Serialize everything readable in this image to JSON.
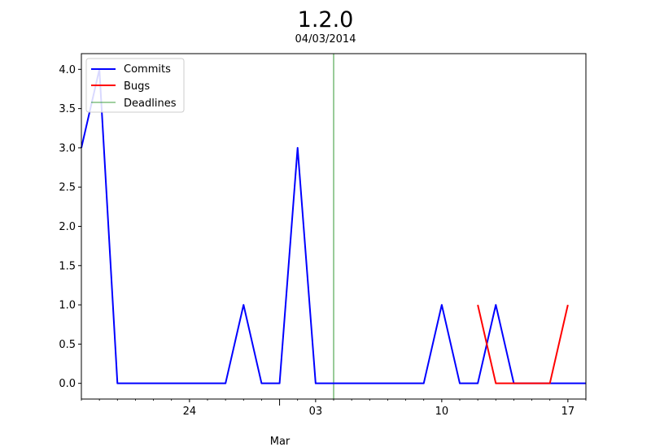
{
  "chart_data": {
    "type": "line",
    "title": "1.2.0",
    "subtitle": "04/03/2014",
    "xlabel": "",
    "ylabel": "",
    "x_axis": {
      "type": "date",
      "range": [
        "2014-02-18",
        "2014-03-18"
      ],
      "month_label": "Mar",
      "major_ticks": [
        {
          "date": "2014-02-24",
          "label": "24"
        },
        {
          "date": "2014-03-03",
          "label": "03"
        },
        {
          "date": "2014-03-10",
          "label": "10"
        },
        {
          "date": "2014-03-17",
          "label": "17"
        }
      ],
      "minor_tick_dates": [
        "2014-02-18",
        "2014-02-19",
        "2014-02-20",
        "2014-02-21",
        "2014-02-22",
        "2014-02-23",
        "2014-02-25",
        "2014-02-26",
        "2014-02-27",
        "2014-02-28",
        "2014-03-01",
        "2014-03-02",
        "2014-03-04",
        "2014-03-05",
        "2014-03-06",
        "2014-03-07",
        "2014-03-08",
        "2014-03-09",
        "2014-03-11",
        "2014-03-12",
        "2014-03-13",
        "2014-03-14",
        "2014-03-15",
        "2014-03-16",
        "2014-03-18"
      ]
    },
    "ylim": [
      -0.2,
      4.2
    ],
    "yticks": [
      "0.0",
      "0.5",
      "1.0",
      "1.5",
      "2.0",
      "2.5",
      "3.0",
      "3.5",
      "4.0"
    ],
    "grid": false,
    "legend_position": "top-left",
    "series": [
      {
        "name": "Commits",
        "color": "#0000ff",
        "points": [
          [
            "2014-02-18",
            3
          ],
          [
            "2014-02-19",
            4
          ],
          [
            "2014-02-20",
            0
          ],
          [
            "2014-02-21",
            0
          ],
          [
            "2014-02-22",
            0
          ],
          [
            "2014-02-23",
            0
          ],
          [
            "2014-02-24",
            0
          ],
          [
            "2014-02-25",
            0
          ],
          [
            "2014-02-26",
            0
          ],
          [
            "2014-02-27",
            1
          ],
          [
            "2014-02-28",
            0
          ],
          [
            "2014-03-01",
            0
          ],
          [
            "2014-03-02",
            3
          ],
          [
            "2014-03-03",
            0
          ],
          [
            "2014-03-04",
            0
          ],
          [
            "2014-03-05",
            0
          ],
          [
            "2014-03-06",
            0
          ],
          [
            "2014-03-07",
            0
          ],
          [
            "2014-03-08",
            0
          ],
          [
            "2014-03-09",
            0
          ],
          [
            "2014-03-10",
            1
          ],
          [
            "2014-03-11",
            0
          ],
          [
            "2014-03-12",
            0
          ],
          [
            "2014-03-13",
            1
          ],
          [
            "2014-03-14",
            0
          ],
          [
            "2014-03-15",
            0
          ],
          [
            "2014-03-16",
            0
          ],
          [
            "2014-03-17",
            0
          ],
          [
            "2014-03-18",
            0
          ]
        ]
      },
      {
        "name": "Bugs",
        "color": "#ff0000",
        "points": [
          [
            "2014-03-12",
            1
          ],
          [
            "2014-03-13",
            0
          ],
          [
            "2014-03-14",
            0
          ],
          [
            "2014-03-15",
            0
          ],
          [
            "2014-03-16",
            0
          ],
          [
            "2014-03-17",
            1
          ]
        ]
      }
    ],
    "deadlines": {
      "name": "Deadlines",
      "color": "#008000",
      "dates": [
        "2014-03-04"
      ]
    }
  }
}
